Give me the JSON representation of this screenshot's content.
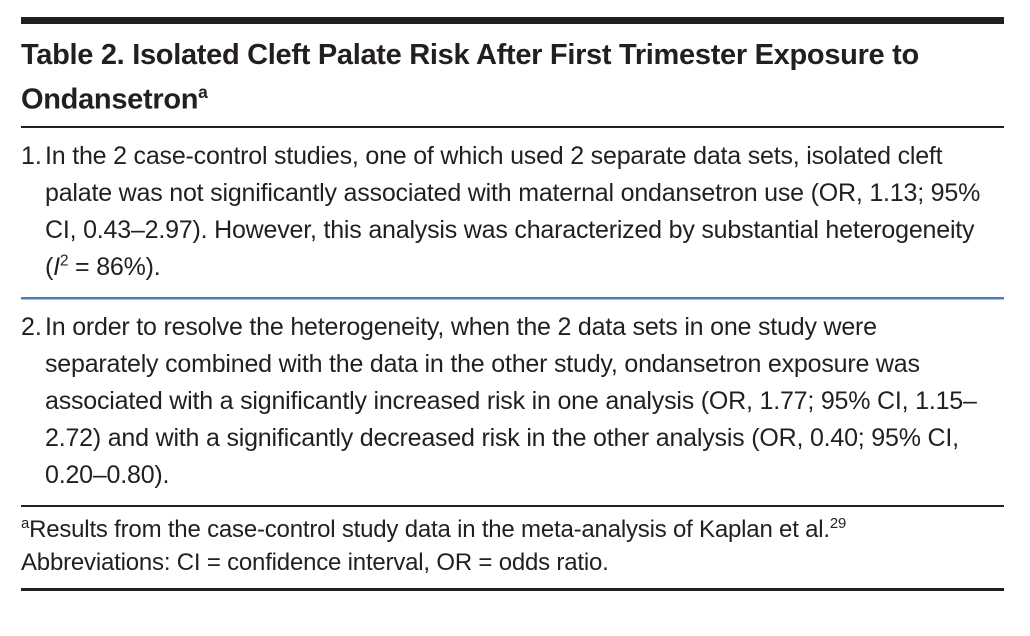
{
  "table": {
    "title": {
      "text": "Table 2. Isolated Cleft Palate Risk After First Trimester Exposure to Ondansetron",
      "superscript": "a"
    },
    "items": [
      {
        "number": "1.",
        "text_before_var": "In the 2 case-control studies, one of which used 2 separate data sets, isolated cleft palate was not significantly associated with maternal ondansetron use (OR, 1.13; 95% CI, 0.43–2.97). However, this analysis was characterized by substantial heterogeneity (",
        "variable": "I",
        "variable_sup": "2",
        "text_after_var": " = 86%)."
      },
      {
        "number": "2.",
        "text": "In order to resolve the heterogeneity, when the 2 data sets in one study were separately combined with the data in the other study, ondansetron exposure was associated with a significantly increased risk in one analysis (OR, 1.77; 95% CI, 1.15–2.72) and with a significantly decreased risk in the other analysis (OR, 0.40; 95% CI, 0.20–0.80)."
      }
    ],
    "footnotes": [
      {
        "marker": "a",
        "text": "Results from the case-control study data in the meta-analysis of Kaplan et al.",
        "reference": "29"
      },
      {
        "text": "Abbreviations: CI = confidence interval, OR = odds ratio."
      }
    ]
  },
  "colors": {
    "text": "#231f20",
    "rule_dark": "#231f20",
    "rule_blue": "#4d7db7",
    "background": "#ffffff"
  }
}
